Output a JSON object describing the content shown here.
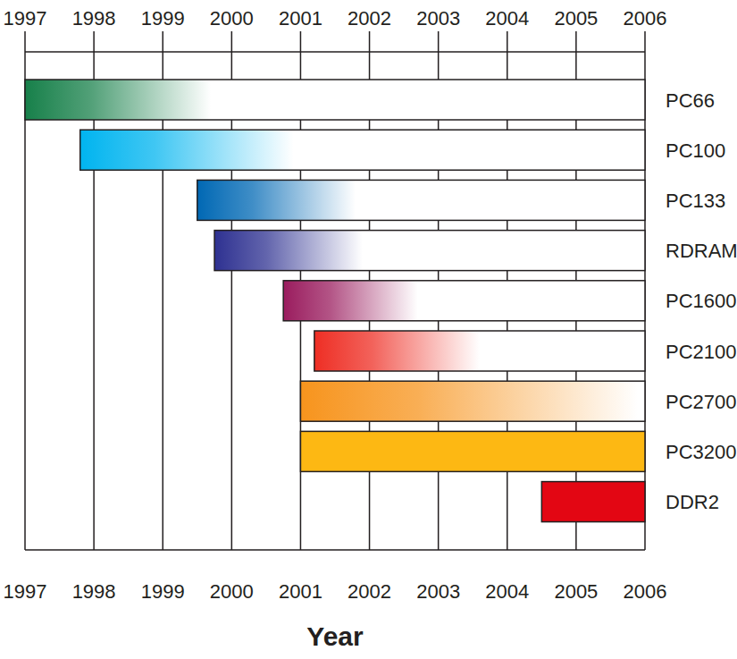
{
  "chart_data": {
    "type": "range_bar",
    "orientation": "horizontal",
    "categories": [
      "PC66",
      "PC100",
      "PC133",
      "RDRAM",
      "PC1600",
      "PC2100",
      "PC2700",
      "PC3200",
      "DDR2"
    ],
    "start": [
      1997,
      1997.8,
      1999.5,
      1999.75,
      2000.75,
      2001.2,
      2001,
      2001,
      2004.5
    ],
    "values": [
      1999.7,
      2000.9,
      2001.8,
      2001.9,
      2002.7,
      2003.6,
      2005.9,
      2006,
      2006
    ],
    "colors": [
      "#17804a",
      "#00b4ef",
      "#0068b4",
      "#2e3191",
      "#9a1c5e",
      "#ee2e24",
      "#f7941d",
      "#fdb813",
      "#e30613"
    ],
    "xlim": [
      1997,
      2006
    ],
    "xticks": [
      1997,
      1998,
      1999,
      2000,
      2001,
      2002,
      2003,
      2004,
      2005,
      2006
    ],
    "x_label": "Year",
    "grid": true
  }
}
